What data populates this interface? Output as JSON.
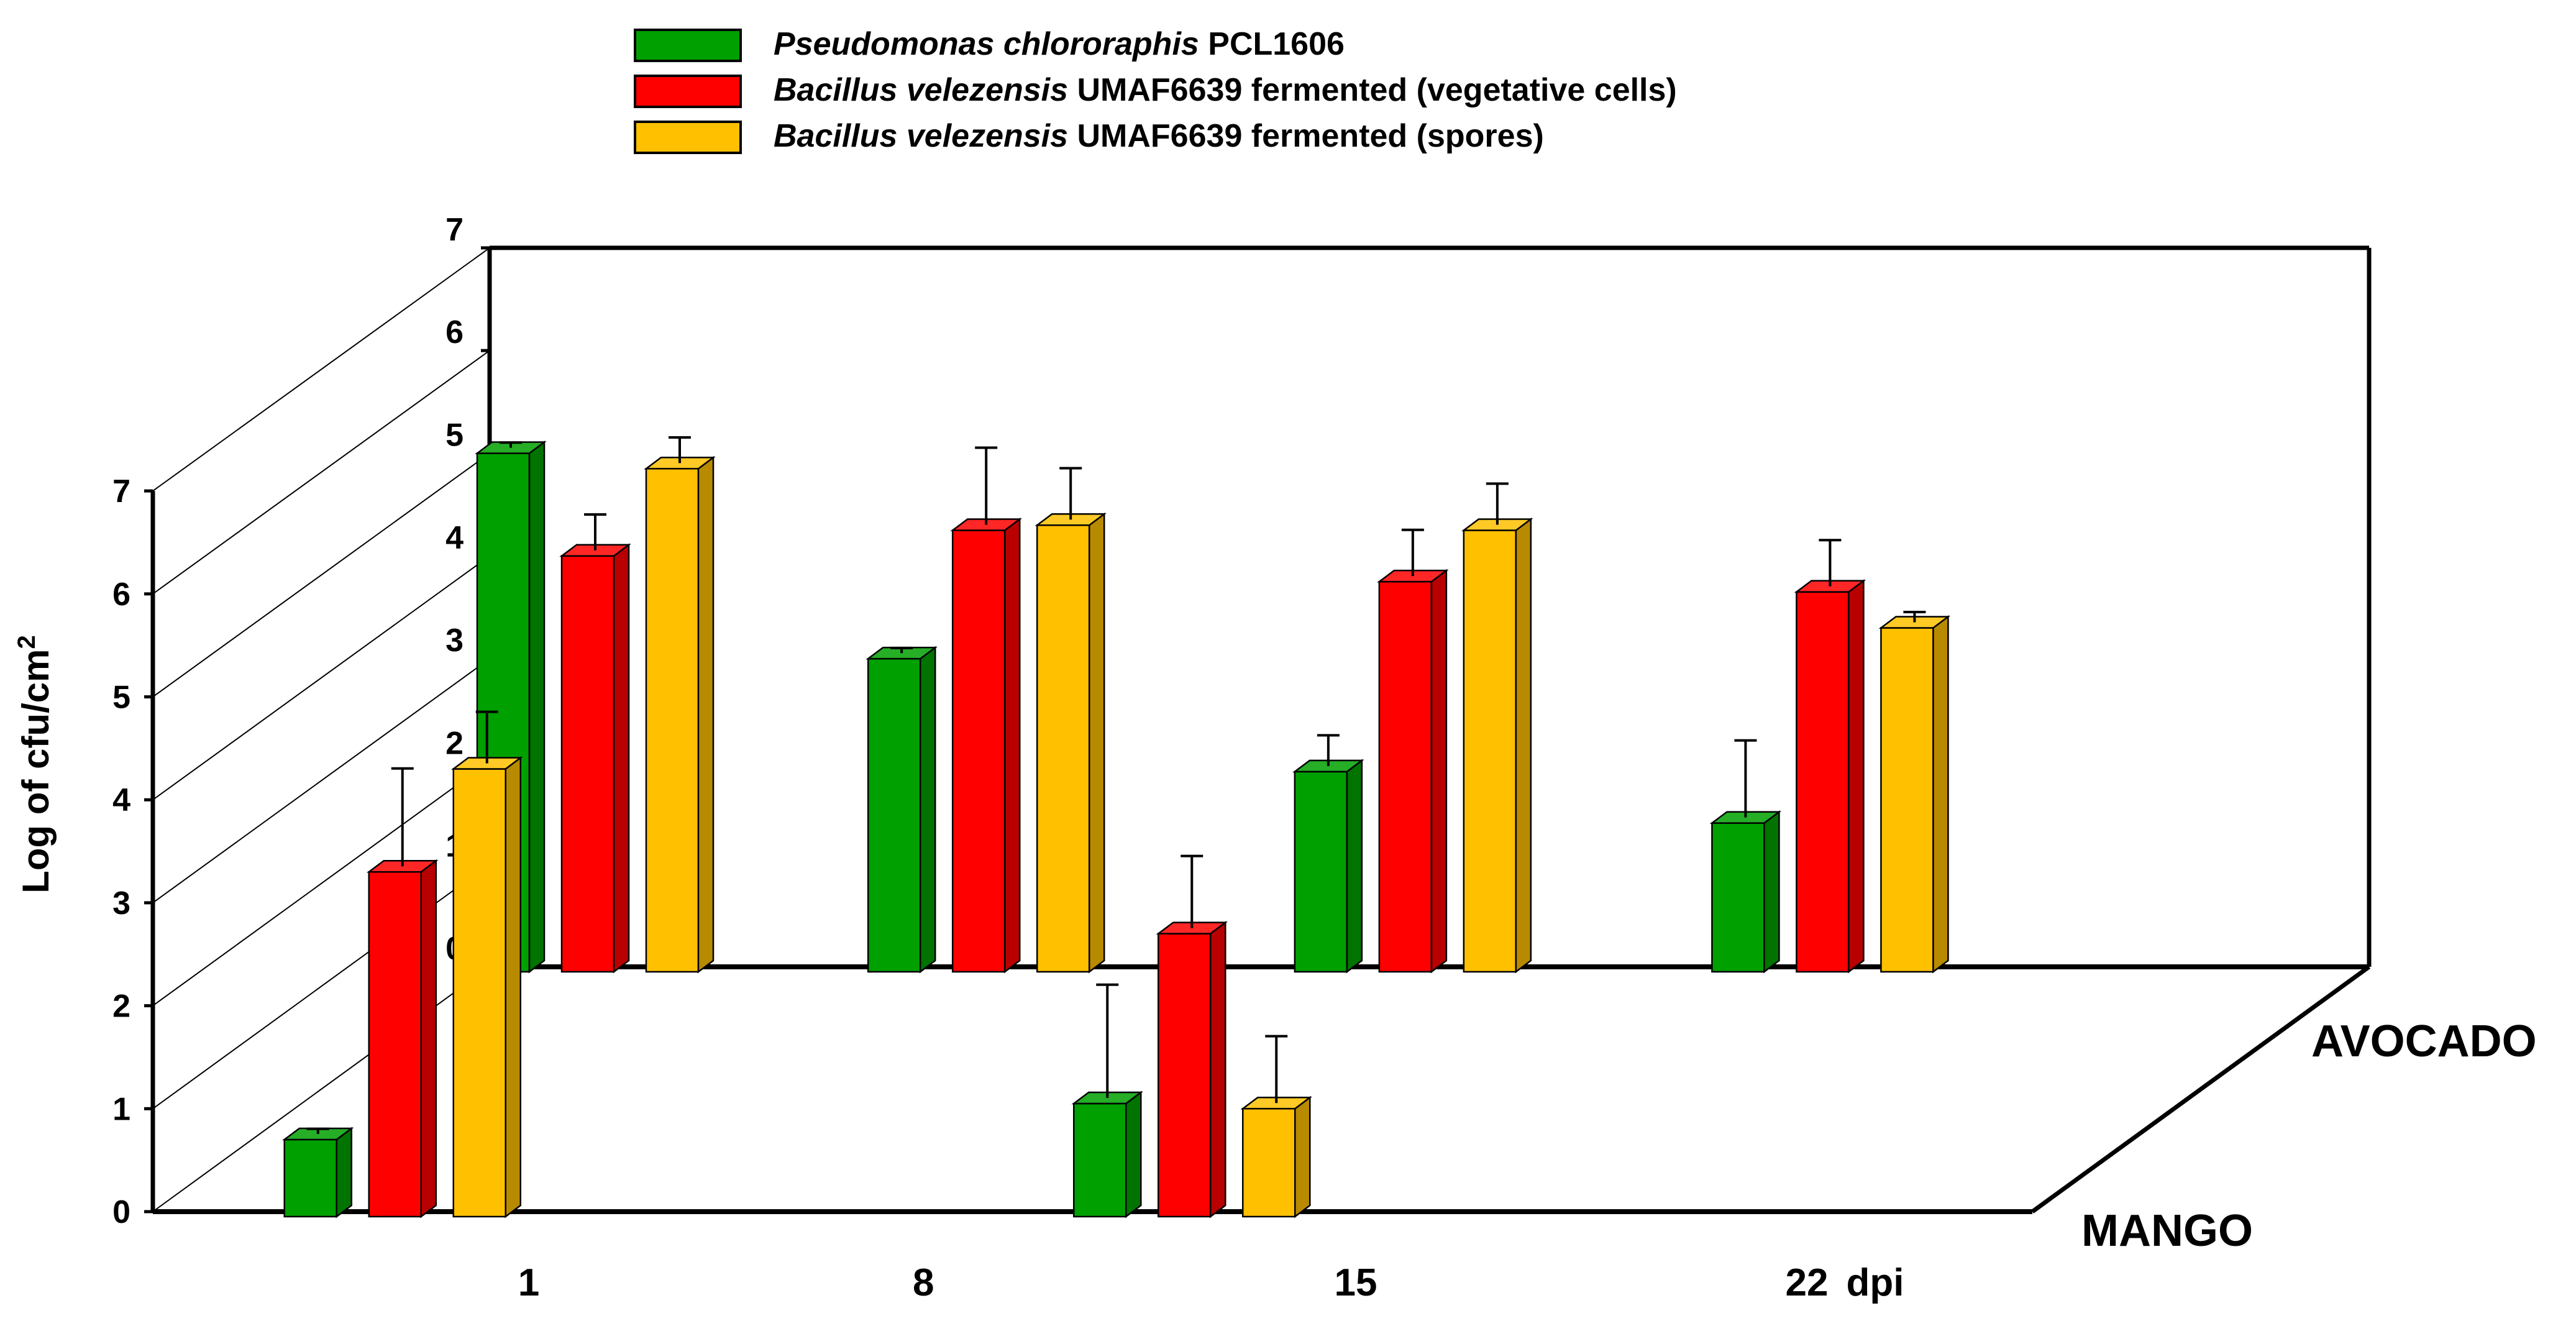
{
  "chart_data": {
    "type": "bar",
    "style": "3d-grouped-bar",
    "ylabel_main": "Log of cfu/cm",
    "ylabel_sup": "2",
    "x_unit": "dpi",
    "categories": [
      "1",
      "8",
      "15",
      "22"
    ],
    "ylim": [
      0,
      7
    ],
    "yticks": [
      "0",
      "1",
      "2",
      "3",
      "4",
      "5",
      "6",
      "7"
    ],
    "legend": [
      {
        "italic": "Pseudomonas chlororaphis",
        "rest": " PCL1606",
        "color": "#00a000"
      },
      {
        "italic": "Bacillus velezensis",
        "rest": " UMAF6639 fermented (vegetative cells)",
        "color": "#ff0000"
      },
      {
        "italic": "Bacillus velezensis",
        "rest": " UMAF6639 fermented (spores)",
        "color": "#ffc000"
      }
    ],
    "panels": [
      {
        "name": "AVOCADO",
        "series": [
          {
            "name": "Pseudomonas chlororaphis PCL1606",
            "values": [
              5.0,
              3.0,
              1.9,
              1.4
            ],
            "errors": [
              0.05,
              0.05,
              0.3,
              0.75
            ]
          },
          {
            "name": "Bacillus velezensis UMAF6639 fermented (vegetative cells)",
            "values": [
              4.0,
              4.25,
              3.75,
              3.65
            ],
            "errors": [
              0.35,
              0.75,
              0.45,
              0.45
            ]
          },
          {
            "name": "Bacillus velezensis UMAF6639 fermented (spores)",
            "values": [
              4.85,
              4.3,
              4.25,
              3.3
            ],
            "errors": [
              0.25,
              0.5,
              0.4,
              0.1
            ]
          }
        ]
      },
      {
        "name": "MANGO",
        "series": [
          {
            "name": "Pseudomonas chlororaphis PCL1606",
            "values": [
              0.7,
              null,
              1.05,
              null
            ],
            "errors": [
              0.05,
              null,
              1.1,
              null
            ]
          },
          {
            "name": "Bacillus velezensis UMAF6639 fermented (vegetative cells)",
            "values": [
              3.3,
              null,
              2.7,
              null
            ],
            "errors": [
              0.95,
              null,
              0.7,
              null
            ]
          },
          {
            "name": "Bacillus velezensis UMAF6639 fermented (spores)",
            "values": [
              4.3,
              null,
              1.0,
              null
            ],
            "errors": [
              0.5,
              null,
              0.65,
              null
            ]
          }
        ]
      }
    ]
  }
}
